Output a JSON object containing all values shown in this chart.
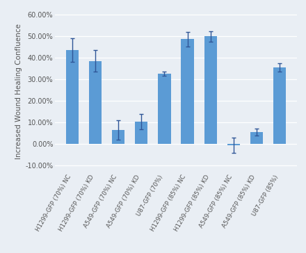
{
  "categories": [
    "H1299-GFP (70%) NC",
    "H1299-GFP (70%) KD",
    "A549-GFP (70%) NC",
    "A549-GFP (70%) KD",
    "U87-GFP (70%)",
    "H1299-GFP (85%) NC",
    "H1299-GFP (85%) KD",
    "A549-GFP (85%) NC",
    "A549-GFP (85%) KD",
    "U87-GFP (85%)"
  ],
  "values": [
    43.5,
    38.5,
    6.5,
    10.3,
    32.5,
    48.5,
    49.8,
    -0.5,
    5.5,
    35.5
  ],
  "errors": [
    5.5,
    5.0,
    4.5,
    3.5,
    1.0,
    3.5,
    2.5,
    3.5,
    1.5,
    2.0
  ],
  "bar_color": "#5B9BD5",
  "error_color": "#2F5597",
  "ylabel": "Increased Wound Healing Confluence",
  "ylim": [
    -13,
    62
  ],
  "yticks": [
    -10,
    0,
    10,
    20,
    30,
    40,
    50,
    60
  ],
  "ytick_labels": [
    "-10.00%",
    "0.00%",
    "10.00%",
    "20.00%",
    "30.00%",
    "40.00%",
    "50.00%",
    "60.00%"
  ],
  "background_color": "#E9EEF4",
  "grid_color": "#FFFFFF",
  "bar_width": 0.55,
  "label_fontsize": 7.5,
  "tick_fontsize": 7.0,
  "xtick_fontsize": 6.2,
  "xlabel_rotation": 60
}
